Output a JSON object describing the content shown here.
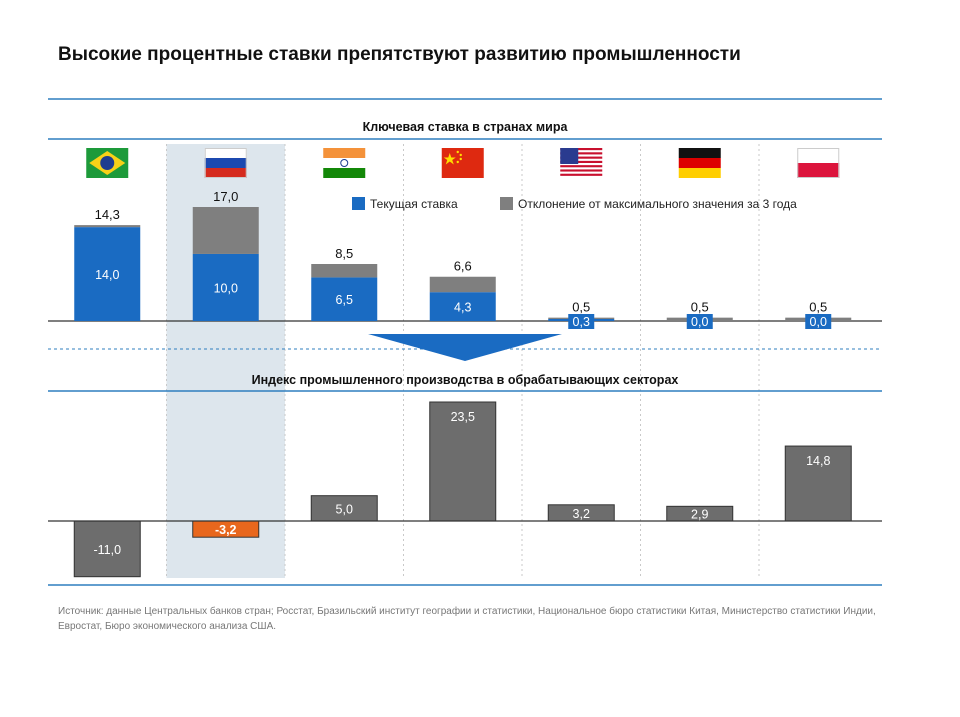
{
  "title": "Высокие процентные ставки препятствуют развитию промышленности",
  "source": "Источник: данные Центральных банков стран; Росстат, Бразильский институт географии и статистики, Национальное бюро статистики Китая, Министерство статистики Индии, Евростат, Бюро экономического анализа США.",
  "colors": {
    "current": "#1a6bc2",
    "deviation": "#7f7f7f",
    "index": "#6d6d6d",
    "highlight_negative": "#e8671d",
    "highlight_band": "#dde6ed",
    "rule": "#2f7fbf"
  },
  "flags": [
    "brazil-flag-icon",
    "russia-flag-icon",
    "india-flag-icon",
    "china-flag-icon",
    "usa-flag-icon",
    "germany-flag-icon",
    "poland-flag-icon"
  ],
  "chart_data": [
    {
      "type": "bar",
      "stacked": true,
      "title": "Ключевая ставка в странах мира",
      "legend_position": "top-right",
      "categories": [
        "Бразилия",
        "Россия",
        "Индия",
        "Китай",
        "США",
        "Германия",
        "Польша"
      ],
      "series": [
        {
          "name": "Текущая ставка",
          "values": [
            14.0,
            10.0,
            6.5,
            4.3,
            0.3,
            0.0,
            0.0
          ]
        },
        {
          "name": "Отклонение от максимального значения за 3 года",
          "values": [
            0.3,
            7.0,
            2.0,
            2.3,
            0.2,
            0.5,
            0.5
          ]
        }
      ],
      "value_labels": [
        "14,0",
        "10,0",
        "6,5",
        "4,3",
        "0,3",
        "0,0",
        "0,0"
      ],
      "total_labels": [
        "14,3",
        "17,0",
        "8,5",
        "6,6",
        "0,5",
        "0,5",
        "0,5"
      ],
      "ylim": [
        0,
        17
      ],
      "highlight_category": "Россия"
    },
    {
      "type": "bar",
      "title": "Индекс промышленного производства в обрабатывающих секторах",
      "categories": [
        "Бразилия",
        "Россия",
        "Индия",
        "Китай",
        "США",
        "Германия",
        "Польша"
      ],
      "values": [
        -11.0,
        -3.2,
        5.0,
        23.5,
        3.2,
        2.9,
        14.8
      ],
      "value_labels": [
        "-11,0",
        "-3,2",
        "5,0",
        "23,5",
        "3,2",
        "2,9",
        "14,8"
      ],
      "ylim": [
        -11,
        23.5
      ],
      "highlight_category": "Россия"
    }
  ]
}
